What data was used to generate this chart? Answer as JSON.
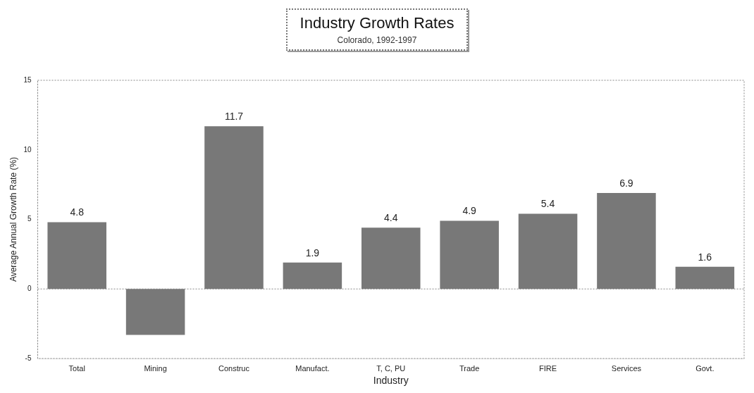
{
  "chart_data": {
    "type": "bar",
    "title": "Industry Growth Rates",
    "subtitle": "Colorado, 1992-1997",
    "xlabel": "Industry",
    "ylabel": "Average Annual Growth Rate (%)",
    "categories": [
      "Total",
      "Mining",
      "Construc",
      "Manufact.",
      "T, C, PU",
      "Trade",
      "FIRE",
      "Services",
      "Govt."
    ],
    "values": [
      4.8,
      -3.3,
      11.7,
      1.9,
      4.4,
      4.9,
      5.4,
      6.9,
      1.6
    ],
    "value_labels": [
      "4.8",
      null,
      "11.7",
      "1.9",
      "4.4",
      "4.9",
      "5.4",
      "6.9",
      "1.6"
    ],
    "color": "#787878",
    "ylim": [
      -5,
      15
    ],
    "yticks": [
      -5,
      0,
      5,
      10,
      15
    ],
    "grid": false,
    "ref_lines": [
      {
        "axis": "y",
        "value": 0
      }
    ]
  }
}
